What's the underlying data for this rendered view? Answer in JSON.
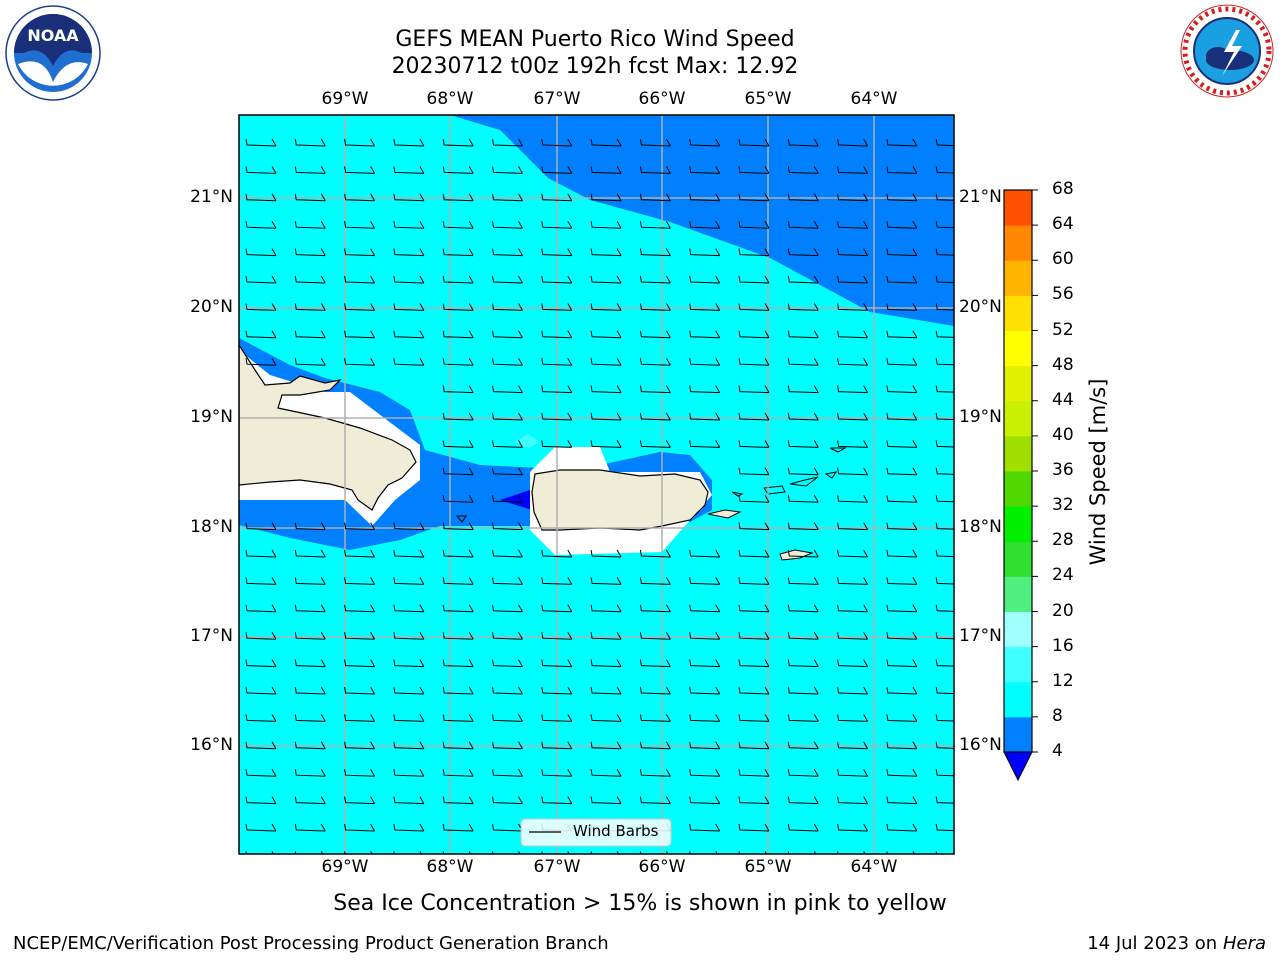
{
  "header": {
    "title_line1": "GEFS MEAN Puerto Rico Wind Speed",
    "title_line2": "20230712 t00z 192h fcst   Max: 12.92",
    "left_logo": "noaa-logo",
    "right_logo": "nws-logo"
  },
  "map": {
    "lon_labels": [
      "69°W",
      "68°W",
      "67°W",
      "66°W",
      "65°W",
      "64°W"
    ],
    "lat_labels": [
      "21°N",
      "20°N",
      "19°N",
      "18°N",
      "17°N",
      "16°N"
    ],
    "legend_label": "Wind Barbs",
    "colors": {
      "dark_blue": "#0000ff",
      "mid_blue": "#0080ff",
      "cyan": "#00ffff",
      "land": "#efedd8",
      "grid": "#b0b0b0"
    }
  },
  "colorbar": {
    "label": "Wind Speed [m/s]",
    "ticks": [
      "4",
      "8",
      "12",
      "16",
      "20",
      "24",
      "28",
      "32",
      "36",
      "40",
      "44",
      "48",
      "52",
      "56",
      "60",
      "64",
      "68"
    ],
    "colors": [
      "#0080ff",
      "#00ffff",
      "#40ffff",
      "#a0ffff",
      "#50f080",
      "#30e030",
      "#00f000",
      "#50d800",
      "#a0e000",
      "#c8f000",
      "#e0f000",
      "#ffff00",
      "#ffe000",
      "#ffb400",
      "#ff8800",
      "#ff5000",
      "#ff2800",
      "#ff0000"
    ],
    "extend_color": "#0000ff"
  },
  "footer": {
    "note": "Sea Ice Concentration > 15% is shown in pink to yellow",
    "org": "NCEP/EMC/Verification Post Processing Product Generation Branch",
    "date": "14 Jul 2023 on ",
    "machine": "Hera"
  }
}
